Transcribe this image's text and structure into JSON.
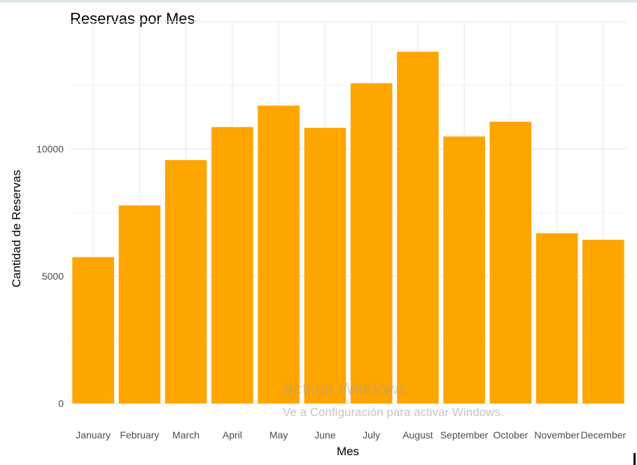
{
  "chart_data": {
    "type": "bar",
    "title": "Reservas por Mes",
    "xlabel": "Mes",
    "ylabel": "Cantidad de Reservas",
    "categories": [
      "January",
      "February",
      "March",
      "April",
      "May",
      "June",
      "July",
      "August",
      "September",
      "October",
      "November",
      "December"
    ],
    "values": [
      5750,
      7780,
      9560,
      10860,
      11700,
      10830,
      12580,
      13820,
      10490,
      11070,
      6690,
      6430
    ],
    "yticks": [
      0,
      5000,
      10000
    ],
    "ytick_labels": [
      "0",
      "5000",
      "10000"
    ],
    "ylim": [
      0,
      15000
    ],
    "grid": true,
    "bar_color": "#FFA500",
    "grid_color": "#ebebeb"
  },
  "watermark": {
    "line1": "Activar Windows",
    "line2": "Ve a Configuración para activar Windows."
  }
}
